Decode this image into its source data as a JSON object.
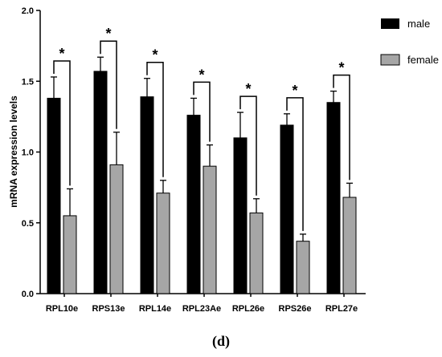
{
  "chart_data": {
    "type": "bar",
    "categories": [
      "RPL10e",
      "RPS13e",
      "RPL14e",
      "RPL23Ae",
      "RPL26e",
      "RPS26e",
      "RPL27e"
    ],
    "series": [
      {
        "name": "male",
        "color": "#000000",
        "values": [
          1.38,
          1.57,
          1.39,
          1.26,
          1.1,
          1.19,
          1.35
        ],
        "errors": [
          0.15,
          0.1,
          0.13,
          0.12,
          0.18,
          0.08,
          0.08
        ]
      },
      {
        "name": "female",
        "color": "#a6a6a6",
        "values": [
          0.55,
          0.91,
          0.71,
          0.9,
          0.57,
          0.37,
          0.68
        ],
        "errors": [
          0.19,
          0.23,
          0.09,
          0.15,
          0.1,
          0.05,
          0.1
        ]
      }
    ],
    "significance": [
      "*",
      "*",
      "*",
      "*",
      "*",
      "*",
      "*"
    ],
    "ylabel": "mRNA expression levels",
    "ylim": [
      0,
      2.0
    ],
    "yticks": [
      "0.0",
      "0.5",
      "1.0",
      "1.5",
      "2.0"
    ],
    "legend_position": "top-right",
    "grid": false
  },
  "panel_label": "(d)"
}
